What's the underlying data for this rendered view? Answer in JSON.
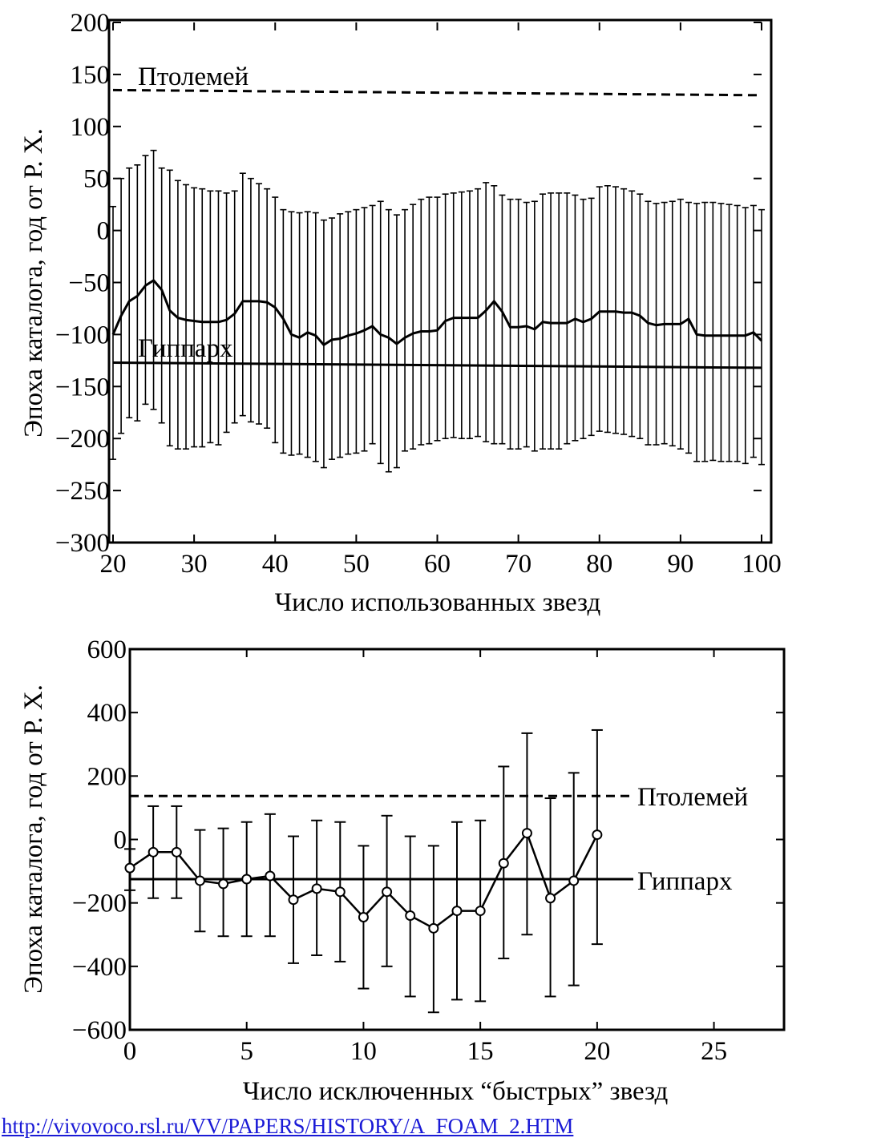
{
  "chart_data": [
    {
      "type": "line",
      "xlabel": "Число использованных звезд",
      "ylabel": "Эпоха каталога, год от Р. Х.",
      "xlim": [
        20,
        100
      ],
      "ylim": [
        -300,
        200
      ],
      "xticks": [
        "20",
        "30",
        "40",
        "50",
        "60",
        "70",
        "80",
        "90",
        "100"
      ],
      "yticks": [
        "200",
        "150",
        "100",
        "50",
        "0",
        "−50",
        "−100",
        "−150",
        "−200",
        "−250",
        "−300"
      ],
      "grid": false,
      "reference_lines": [
        {
          "name": "Птолемей",
          "style": "dashed",
          "y_start": 135,
          "y_end": 130
        },
        {
          "name": "Гиппарх",
          "style": "solid",
          "y_start": -127,
          "y_end": -132
        }
      ],
      "series": [
        {
          "x": [
            20,
            21,
            22,
            23,
            24,
            25,
            26,
            27,
            28,
            29,
            30,
            31,
            32,
            33,
            34,
            35,
            36,
            37,
            38,
            39,
            40,
            41,
            42,
            43,
            44,
            45,
            46,
            47,
            48,
            49,
            50,
            51,
            52,
            53,
            54,
            55,
            56,
            57,
            58,
            59,
            60,
            61,
            62,
            63,
            64,
            65,
            66,
            67,
            68,
            69,
            70,
            71,
            72,
            73,
            74,
            75,
            76,
            77,
            78,
            79,
            80,
            81,
            82,
            83,
            84,
            85,
            86,
            87,
            88,
            89,
            90,
            91,
            92,
            93,
            94,
            95,
            96,
            97,
            98,
            99,
            100
          ],
          "y": [
            -100,
            -82,
            -68,
            -63,
            -53,
            -48,
            -57,
            -77,
            -84,
            -86,
            -87,
            -88,
            -88,
            -88,
            -86,
            -80,
            -68,
            -68,
            -68,
            -69,
            -74,
            -85,
            -100,
            -103,
            -98,
            -101,
            -110,
            -105,
            -104,
            -101,
            -99,
            -96,
            -92,
            -100,
            -103,
            -109,
            -103,
            -99,
            -97,
            -97,
            -96,
            -87,
            -84,
            -84,
            -84,
            -84,
            -77,
            -68,
            -78,
            -93,
            -93,
            -92,
            -95,
            -88,
            -89,
            -89,
            -89,
            -85,
            -88,
            -85,
            -78,
            -78,
            -78,
            -79,
            -79,
            -82,
            -89,
            -91,
            -90,
            -90,
            -90,
            -85,
            -100,
            -101,
            -101,
            -101,
            -101,
            -101,
            -101,
            -98,
            -106
          ],
          "upper": [
            23,
            50,
            60,
            63,
            72,
            77,
            60,
            58,
            48,
            44,
            41,
            40,
            38,
            38,
            36,
            38,
            55,
            50,
            45,
            40,
            32,
            20,
            18,
            17,
            18,
            17,
            10,
            12,
            16,
            18,
            20,
            22,
            24,
            28,
            20,
            15,
            20,
            25,
            30,
            32,
            32,
            35,
            36,
            37,
            38,
            40,
            46,
            43,
            34,
            30,
            30,
            27,
            28,
            35,
            36,
            36,
            36,
            34,
            30,
            31,
            42,
            43,
            42,
            40,
            38,
            35,
            28,
            26,
            27,
            28,
            30,
            27,
            26,
            27,
            27,
            26,
            25,
            24,
            22,
            24,
            20
          ],
          "lower": [
            -220,
            -195,
            -180,
            -183,
            -167,
            -172,
            -185,
            -207,
            -210,
            -210,
            -208,
            -208,
            -204,
            -206,
            -194,
            -185,
            -178,
            -184,
            -186,
            -190,
            -204,
            -214,
            -216,
            -215,
            -218,
            -222,
            -228,
            -220,
            -218,
            -215,
            -214,
            -212,
            -205,
            -224,
            -232,
            -228,
            -212,
            -210,
            -206,
            -205,
            -202,
            -200,
            -199,
            -200,
            -200,
            -198,
            -203,
            -205,
            -205,
            -210,
            -210,
            -208,
            -212,
            -210,
            -210,
            -210,
            -205,
            -202,
            -200,
            -197,
            -193,
            -194,
            -195,
            -196,
            -198,
            -200,
            -206,
            -206,
            -205,
            -207,
            -210,
            -214,
            -222,
            -222,
            -221,
            -222,
            -222,
            -222,
            -224,
            -218,
            -225
          ]
        }
      ],
      "annotations": [
        "Птолемей",
        "Гиппарх"
      ]
    },
    {
      "type": "line",
      "xlabel": "Число исключенных “быстрых” звезд",
      "ylabel": "Эпоха каталога, год от Р. Х.",
      "xlim": [
        0,
        28
      ],
      "ylim": [
        -600,
        600
      ],
      "xticks": [
        "0",
        "5",
        "10",
        "15",
        "20",
        "25"
      ],
      "yticks": [
        "600",
        "400",
        "200",
        "0",
        "−200",
        "−400",
        "−600"
      ],
      "grid": false,
      "reference_lines": [
        {
          "name": "Птолемей",
          "style": "dashed",
          "y": 137
        },
        {
          "name": "Гиппарх",
          "style": "solid",
          "y": -125
        }
      ],
      "series": [
        {
          "marker": "open-circle",
          "x": [
            0,
            1,
            2,
            3,
            4,
            5,
            6,
            7,
            8,
            9,
            10,
            11,
            12,
            13,
            14,
            15,
            16,
            17,
            18,
            19,
            20
          ],
          "y": [
            -90,
            -40,
            -40,
            -130,
            -140,
            -125,
            -115,
            -190,
            -155,
            -165,
            -245,
            -165,
            -240,
            -280,
            -225,
            -225,
            -75,
            20,
            -185,
            -130,
            15
          ],
          "upper": [
            -30,
            105,
            105,
            30,
            35,
            55,
            80,
            10,
            60,
            55,
            -20,
            75,
            10,
            -20,
            55,
            60,
            230,
            335,
            130,
            210,
            345
          ],
          "lower": [
            -160,
            -185,
            -185,
            -290,
            -305,
            -305,
            -305,
            -390,
            -365,
            -385,
            -470,
            -400,
            -495,
            -545,
            -505,
            -510,
            -375,
            -300,
            -495,
            -460,
            -330
          ]
        }
      ],
      "annotations": [
        "Птолемей",
        "Гиппарх"
      ]
    }
  ],
  "footer": {
    "url": "http://vivovoco.rsl.ru/VV/PAPERS/HISTORY/A_FOAM_2.HTM"
  }
}
